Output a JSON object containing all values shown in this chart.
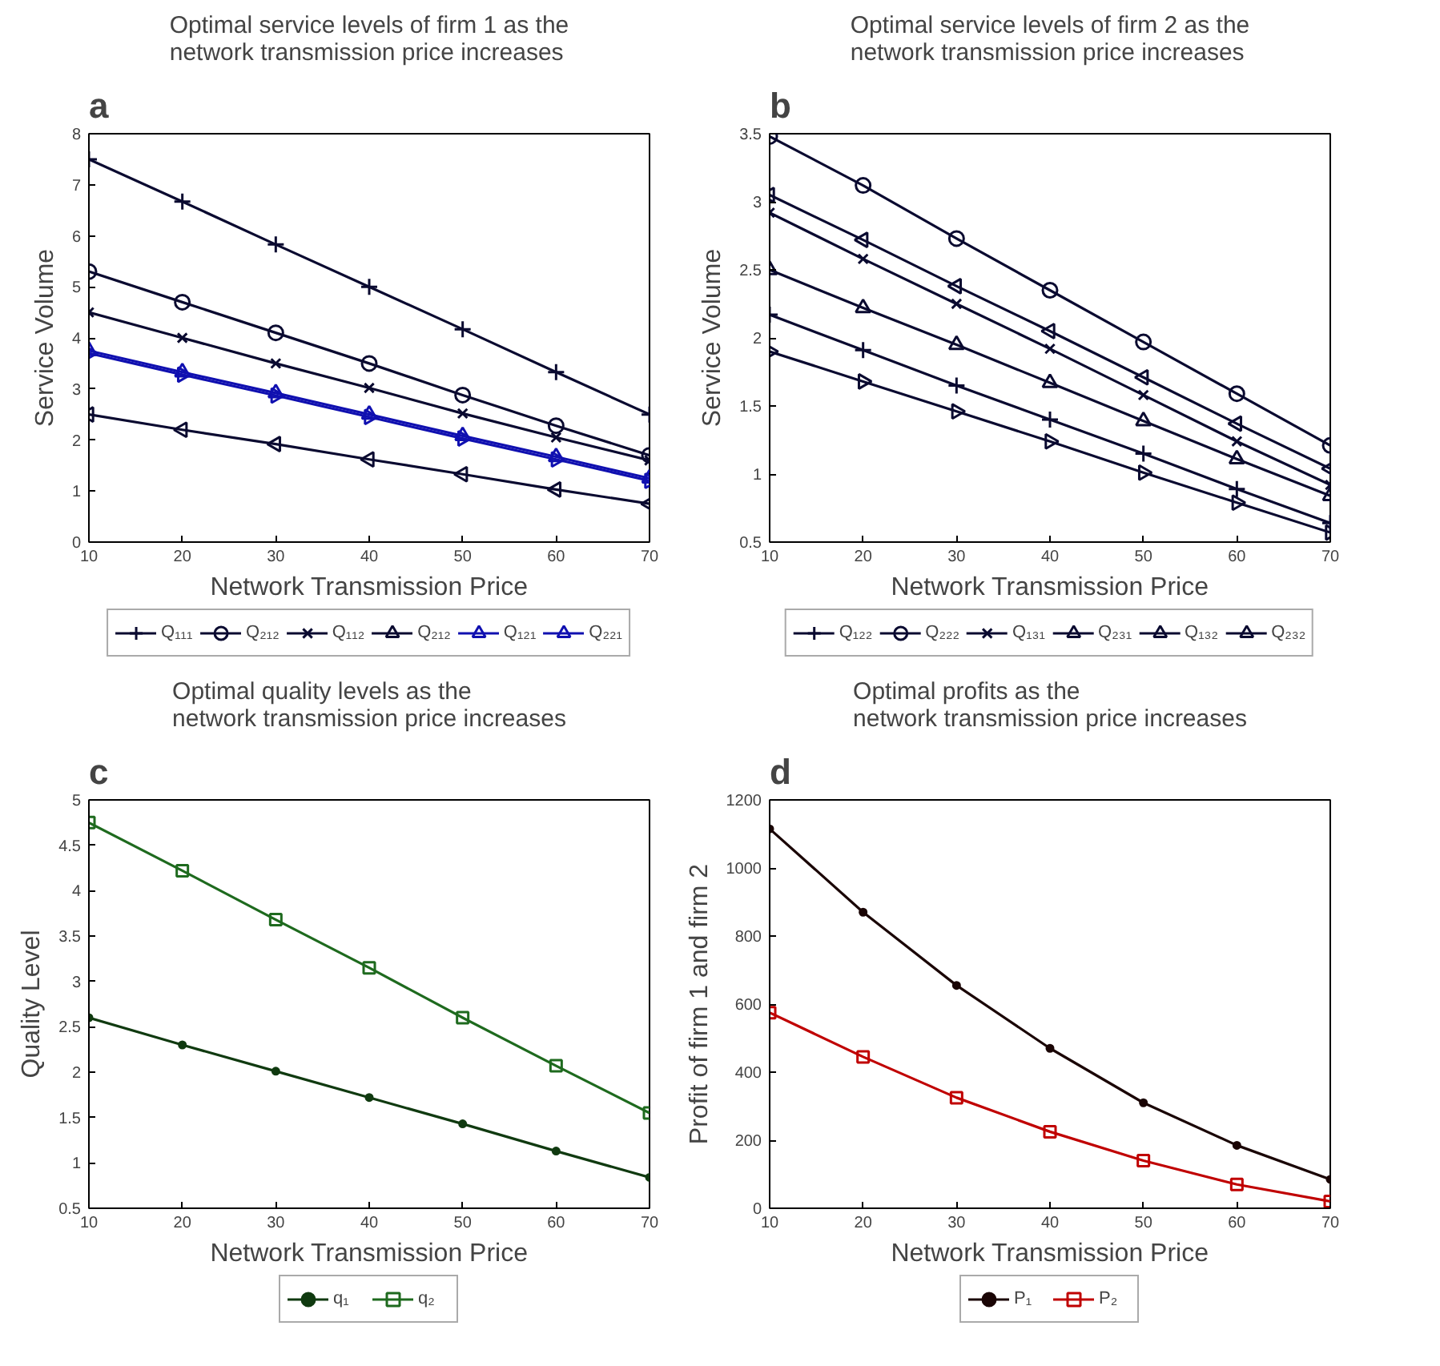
{
  "chart_data": [
    {
      "type": "line",
      "title": "Optimal service levels of firm 1 as the\nnetwork transmission price increases",
      "xlabel": "Network Transmission Price",
      "ylabel": "Service Volume",
      "annotations": [
        "a"
      ],
      "x": [
        10,
        20,
        30,
        40,
        50,
        60,
        70
      ],
      "xlim": [
        10,
        70
      ],
      "xticks": [
        10,
        20,
        30,
        40,
        50,
        60,
        70
      ],
      "ylim": [
        0,
        8
      ],
      "yticks": [
        0,
        1,
        2,
        3,
        4,
        5,
        6,
        7,
        8
      ],
      "legend": "bottom",
      "series": [
        {
          "name": "Q₁₁₁",
          "color": "#0a0a30",
          "marker": "cross",
          "values": [
            7.5,
            6.67,
            5.83,
            5.0,
            4.17,
            3.33,
            2.5
          ]
        },
        {
          "name": "Q₂₁₂",
          "color": "#0a0a30",
          "marker": "circle",
          "values": [
            5.3,
            4.7,
            4.1,
            3.5,
            2.88,
            2.28,
            1.7
          ]
        },
        {
          "name": "Q₁₁₂",
          "color": "#0a0a30",
          "marker": "x",
          "values": [
            4.5,
            4.0,
            3.5,
            3.02,
            2.52,
            2.05,
            1.6
          ]
        },
        {
          "name": "Q₂₁₂",
          "color": "#0a0a30",
          "marker": "triangle-left",
          "values": [
            2.5,
            2.2,
            1.92,
            1.62,
            1.33,
            1.03,
            0.75
          ]
        },
        {
          "name": "Q₁₂₁",
          "color": "#1010b0",
          "marker": "triangle",
          "values": [
            3.75,
            3.33,
            2.92,
            2.5,
            2.08,
            1.67,
            1.25
          ]
        },
        {
          "name": "Q₂₂₁",
          "color": "#1010b0",
          "marker": "triangle-right",
          "values": [
            3.7,
            3.28,
            2.87,
            2.45,
            2.03,
            1.62,
            1.2
          ]
        }
      ]
    },
    {
      "type": "line",
      "title": "Optimal service levels of firm 2 as the\nnetwork transmission price increases",
      "xlabel": "Network Transmission Price",
      "ylabel": "Service Volume",
      "annotations": [
        "b"
      ],
      "x": [
        10,
        20,
        30,
        40,
        50,
        60,
        70
      ],
      "xlim": [
        10,
        70
      ],
      "xticks": [
        10,
        20,
        30,
        40,
        50,
        60,
        70
      ],
      "ylim": [
        0.5,
        3.5
      ],
      "yticks": [
        0.5,
        1,
        1.5,
        2,
        2.5,
        3,
        3.5
      ],
      "legend": "bottom",
      "series": [
        {
          "name": "Q₁₂₂",
          "color": "#0a0a30",
          "marker": "cross",
          "values": [
            2.17,
            1.91,
            1.65,
            1.4,
            1.15,
            0.89,
            0.64
          ]
        },
        {
          "name": "Q₂₂₂",
          "color": "#0a0a30",
          "marker": "circle",
          "values": [
            3.48,
            3.12,
            2.73,
            2.35,
            1.97,
            1.59,
            1.21
          ]
        },
        {
          "name": "Q₁₃₁",
          "color": "#0a0a30",
          "marker": "x",
          "values": [
            2.92,
            2.58,
            2.25,
            1.92,
            1.58,
            1.24,
            0.92
          ]
        },
        {
          "name": "Q₂₃₁",
          "color": "#0a0a30",
          "marker": "triangle-left",
          "values": [
            3.05,
            2.72,
            2.38,
            2.05,
            1.71,
            1.37,
            1.04
          ]
        },
        {
          "name": "Q₁₃₂",
          "color": "#0a0a30",
          "marker": "triangle",
          "values": [
            2.5,
            2.22,
            1.95,
            1.67,
            1.39,
            1.11,
            0.84
          ]
        },
        {
          "name": "Q₂₃₂",
          "color": "#0a0a30",
          "marker": "triangle-right",
          "values": [
            1.9,
            1.68,
            1.46,
            1.24,
            1.01,
            0.79,
            0.57
          ]
        }
      ]
    },
    {
      "type": "line",
      "title": "Optimal quality levels as the\nnetwork transmission price increases",
      "xlabel": "Network Transmission Price",
      "ylabel": "Quality Level",
      "annotations": [
        "c"
      ],
      "x": [
        10,
        20,
        30,
        40,
        50,
        60,
        70
      ],
      "xlim": [
        10,
        70
      ],
      "xticks": [
        10,
        20,
        30,
        40,
        50,
        60,
        70
      ],
      "ylim": [
        0.5,
        5
      ],
      "yticks": [
        0.5,
        1,
        1.5,
        2,
        2.5,
        3,
        3.5,
        4,
        4.5,
        5
      ],
      "legend": "bottom",
      "series": [
        {
          "name": "q₁",
          "color": "#103a10",
          "marker": "dot",
          "values": [
            2.6,
            2.3,
            2.01,
            1.72,
            1.43,
            1.13,
            0.84
          ]
        },
        {
          "name": "q₂",
          "color": "#1e6a1e",
          "marker": "square",
          "values": [
            4.75,
            4.22,
            3.68,
            3.15,
            2.6,
            2.07,
            1.55
          ]
        }
      ]
    },
    {
      "type": "line",
      "title": "Optimal profits as the\nnetwork transmission price increases",
      "xlabel": "Network Transmission Price",
      "ylabel": "Profit of firm 1 and firm 2",
      "annotations": [
        "d"
      ],
      "x": [
        10,
        20,
        30,
        40,
        50,
        60,
        70
      ],
      "xlim": [
        10,
        70
      ],
      "xticks": [
        10,
        20,
        30,
        40,
        50,
        60,
        70
      ],
      "ylim": [
        0,
        1200
      ],
      "yticks": [
        0,
        200,
        400,
        600,
        800,
        1000,
        1200
      ],
      "legend": "bottom",
      "series": [
        {
          "name": "P₁",
          "color": "#1a0505",
          "marker": "dot",
          "values": [
            1115,
            870,
            655,
            470,
            310,
            185,
            85
          ]
        },
        {
          "name": "P₂",
          "color": "#c00000",
          "marker": "square",
          "values": [
            575,
            445,
            325,
            225,
            140,
            70,
            20
          ]
        }
      ]
    }
  ]
}
